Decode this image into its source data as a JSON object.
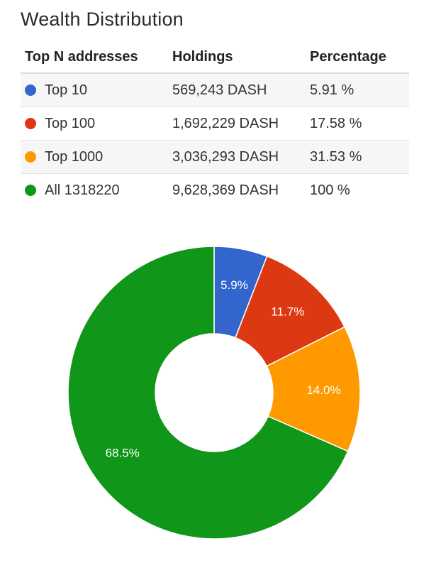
{
  "title": "Wealth Distribution",
  "table": {
    "headers": [
      "Top N addresses",
      "Holdings",
      "Percentage"
    ],
    "rows": [
      {
        "label": "Top 10",
        "holdings": "569,243 DASH",
        "percentage": "5.91 %",
        "color": "#3366cc"
      },
      {
        "label": "Top 100",
        "holdings": "1,692,229 DASH",
        "percentage": "17.58 %",
        "color": "#dc3912"
      },
      {
        "label": "Top 1000",
        "holdings": "3,036,293 DASH",
        "percentage": "31.53 %",
        "color": "#ff9900"
      },
      {
        "label": "All 1318220",
        "holdings": "9,628,369 DASH",
        "percentage": "100 %",
        "color": "#109618"
      }
    ]
  },
  "chart_data": {
    "type": "pie",
    "donut": true,
    "slices": [
      {
        "value": 5.9,
        "label": "5.9%",
        "color": "#3366cc"
      },
      {
        "value": 11.7,
        "label": "11.7%",
        "color": "#dc3912"
      },
      {
        "value": 14.0,
        "label": "14.0%",
        "color": "#ff9900"
      },
      {
        "value": 68.5,
        "label": "68.5%",
        "color": "#109618"
      }
    ]
  }
}
